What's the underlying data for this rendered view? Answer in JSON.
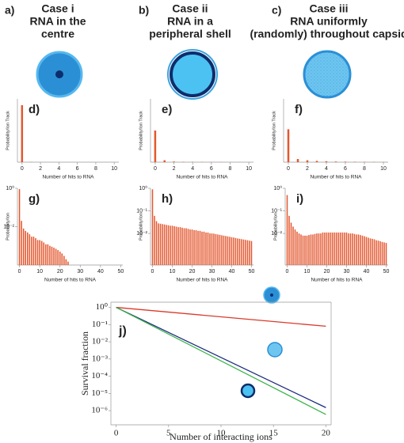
{
  "headers": [
    {
      "label": "a)",
      "lines": [
        "Case i",
        "RNA in the",
        "centre"
      ]
    },
    {
      "label": "b)",
      "lines": [
        "Case ii",
        "RNA in a",
        "peripheral shell"
      ]
    },
    {
      "label": "c)",
      "lines": [
        "Case iii",
        "RNA uniformly",
        "(randomly) throughout capsid"
      ]
    }
  ],
  "chart_data": [
    {
      "type": "bar",
      "label": "d)",
      "xlabel": "Number of hits to RNA",
      "ylabel": "Probability/Ion Track",
      "color": "#e4572e",
      "x": [
        0,
        1,
        2,
        3,
        4,
        5,
        6,
        7,
        8,
        9,
        10
      ],
      "values": [
        0.9,
        0.003,
        0,
        0,
        0,
        0,
        0,
        0,
        0,
        0,
        0
      ],
      "xlim": [
        -0.5,
        10.5
      ],
      "xticks": [
        0,
        2,
        4,
        6,
        8,
        10
      ],
      "ylim": [
        0,
        1
      ]
    },
    {
      "type": "bar",
      "label": "e)",
      "xlabel": "Number of hits to RNA",
      "ylabel": "Probability/Ion Track",
      "color": "#e4572e",
      "x": [
        0,
        1,
        2,
        3,
        4,
        5,
        6,
        7,
        8,
        9,
        10
      ],
      "values": [
        0.5,
        0.03,
        0.01,
        0.005,
        0.004,
        0.003,
        0.002,
        0.002,
        0.001,
        0.001,
        0.001
      ],
      "xlim": [
        -0.5,
        10.5
      ],
      "xticks": [
        0,
        2,
        4,
        6,
        8,
        10
      ],
      "ylim": [
        0,
        1
      ]
    },
    {
      "type": "bar",
      "label": "f)",
      "xlabel": "Number of hits to RNA",
      "ylabel": "Probability/Ion Track",
      "color": "#e4572e",
      "x": [
        0,
        1,
        2,
        3,
        4,
        5,
        6,
        7,
        8,
        9,
        10
      ],
      "values": [
        0.52,
        0.05,
        0.03,
        0.02,
        0.015,
        0.01,
        0.008,
        0.006,
        0.005,
        0.004,
        0.003
      ],
      "xlim": [
        -0.5,
        10.5
      ],
      "xticks": [
        0,
        2,
        4,
        6,
        8,
        10
      ],
      "ylim": [
        0,
        1
      ]
    },
    {
      "type": "bar",
      "label": "g)",
      "xlabel": "Number of hits to RNA",
      "ylabel": "Probability/Ion",
      "color": "#e4572e",
      "log_y": true,
      "x": [
        0,
        1,
        2,
        3,
        4,
        5,
        6,
        7,
        8,
        9,
        10,
        11,
        12,
        13,
        14,
        15,
        16,
        17,
        18,
        19,
        20,
        21,
        22,
        23,
        24,
        25,
        26,
        27,
        28,
        29,
        30,
        31,
        32,
        33,
        34,
        35,
        36,
        37,
        38,
        39,
        40,
        41,
        42,
        43,
        44,
        45,
        46,
        47,
        48,
        49,
        50
      ],
      "values": [
        0.9,
        0.02,
        0.008,
        0.006,
        0.005,
        0.004,
        0.003,
        0.003,
        0.0025,
        0.002,
        0.002,
        0.0018,
        0.0015,
        0.0012,
        0.0012,
        0.001,
        0.0009,
        0.0008,
        0.0007,
        0.0006,
        0.0005,
        0.0004,
        0.0003,
        0.0002,
        0.00015,
        null,
        null,
        null,
        null,
        null,
        null,
        null,
        null,
        null,
        null,
        null,
        null,
        null,
        null,
        null,
        null,
        null,
        null,
        null,
        null,
        null,
        null,
        null,
        null,
        null,
        null
      ],
      "xlim": [
        -1,
        51
      ],
      "xticks": [
        0,
        10,
        20,
        30,
        40,
        50
      ],
      "ylim": [
        0.0001,
        1
      ],
      "yticks": [
        {
          "value": 1,
          "label": "10⁰"
        },
        {
          "value": 0.01,
          "label": "10⁻²"
        }
      ]
    },
    {
      "type": "bar",
      "label": "h)",
      "xlabel": "Number of hits to RNA",
      "ylabel": "Probability/Ion",
      "color": "#e4572e",
      "log_y": true,
      "x": [
        0,
        1,
        2,
        3,
        4,
        5,
        6,
        7,
        8,
        9,
        10,
        11,
        12,
        13,
        14,
        15,
        16,
        17,
        18,
        19,
        20,
        21,
        22,
        23,
        24,
        25,
        26,
        27,
        28,
        29,
        30,
        31,
        32,
        33,
        34,
        35,
        36,
        37,
        38,
        39,
        40,
        41,
        42,
        43,
        44,
        45,
        46,
        47,
        48,
        49,
        50
      ],
      "values": [
        0.9,
        0.06,
        0.035,
        0.028,
        0.027,
        0.026,
        0.025,
        0.024,
        0.023,
        0.022,
        0.022,
        0.021,
        0.02,
        0.019,
        0.019,
        0.018,
        0.017,
        0.017,
        0.016,
        0.015,
        0.015,
        0.014,
        0.014,
        0.013,
        0.013,
        0.012,
        0.012,
        0.011,
        0.011,
        0.01,
        0.01,
        0.0098,
        0.0094,
        0.009,
        0.0087,
        0.0083,
        0.008,
        0.0077,
        0.0074,
        0.0071,
        0.0068,
        0.0066,
        0.0063,
        0.006,
        0.0058,
        0.0056,
        0.0054,
        0.0052,
        0.005,
        0.0048,
        0.0046
      ],
      "xlim": [
        -1,
        51
      ],
      "xticks": [
        0,
        10,
        20,
        30,
        40,
        50
      ],
      "ylim": [
        0.0004,
        1
      ],
      "yticks": [
        {
          "value": 1,
          "label": "10⁰"
        },
        {
          "value": 0.1,
          "label": "10⁻¹"
        },
        {
          "value": 0.01,
          "label": "10⁻²"
        }
      ]
    },
    {
      "type": "bar",
      "label": "i)",
      "xlabel": "Number of hits to RNA",
      "ylabel": "Probability/Ion",
      "color": "#e4572e",
      "log_y": true,
      "x": [
        0,
        1,
        2,
        3,
        4,
        5,
        6,
        7,
        8,
        9,
        10,
        11,
        12,
        13,
        14,
        15,
        16,
        17,
        18,
        19,
        20,
        21,
        22,
        23,
        24,
        25,
        26,
        27,
        28,
        29,
        30,
        31,
        32,
        33,
        34,
        35,
        36,
        37,
        38,
        39,
        40,
        41,
        42,
        43,
        44,
        45,
        46,
        47,
        48,
        49,
        50
      ],
      "values": [
        0.5,
        0.06,
        0.03,
        0.02,
        0.015,
        0.012,
        0.01,
        0.009,
        0.008,
        0.008,
        0.008,
        0.0085,
        0.009,
        0.009,
        0.0095,
        0.01,
        0.01,
        0.01,
        0.011,
        0.011,
        0.011,
        0.011,
        0.011,
        0.011,
        0.011,
        0.011,
        0.011,
        0.011,
        0.011,
        0.011,
        0.011,
        0.01,
        0.01,
        0.01,
        0.0095,
        0.009,
        0.009,
        0.0085,
        0.008,
        0.0075,
        0.007,
        0.0065,
        0.006,
        0.0058,
        0.0055,
        0.005,
        0.0048,
        0.0045,
        0.0042,
        0.004,
        0.0038
      ],
      "xlim": [
        -1,
        51
      ],
      "xticks": [
        0,
        10,
        20,
        30,
        40,
        50
      ],
      "ylim": [
        0.0004,
        1
      ],
      "yticks": [
        {
          "value": 1,
          "label": "10⁰"
        },
        {
          "value": 0.1,
          "label": "10⁻¹"
        },
        {
          "value": 0.01,
          "label": "10⁻²"
        }
      ]
    },
    {
      "type": "line",
      "label": "j)",
      "xlabel": "Number of interacting ions",
      "ylabel": "Survival fraction",
      "log_y": true,
      "x": [
        0,
        20
      ],
      "series": [
        {
          "color": "#d93a2b",
          "values": [
            1,
            0.08
          ]
        },
        {
          "color": "#1c2a80",
          "values": [
            1,
            1.5e-06
          ]
        },
        {
          "color": "#3bb54a",
          "values": [
            1,
            6e-07
          ]
        }
      ],
      "xlim": [
        -0.5,
        20.5
      ],
      "xticks": [
        0,
        5,
        10,
        15,
        20
      ],
      "ylim": [
        1.5e-07,
        2
      ],
      "yticks": [
        {
          "value": 1,
          "label": "10⁰"
        },
        {
          "value": 0.1,
          "label": "10⁻¹"
        },
        {
          "value": 0.01,
          "label": "10⁻²"
        },
        {
          "value": 0.001,
          "label": "10⁻³"
        },
        {
          "value": 0.0001,
          "label": "10⁻⁴"
        },
        {
          "value": 1e-05,
          "label": "10⁻⁵"
        },
        {
          "value": 1e-06,
          "label": "10⁻⁶"
        }
      ]
    }
  ]
}
